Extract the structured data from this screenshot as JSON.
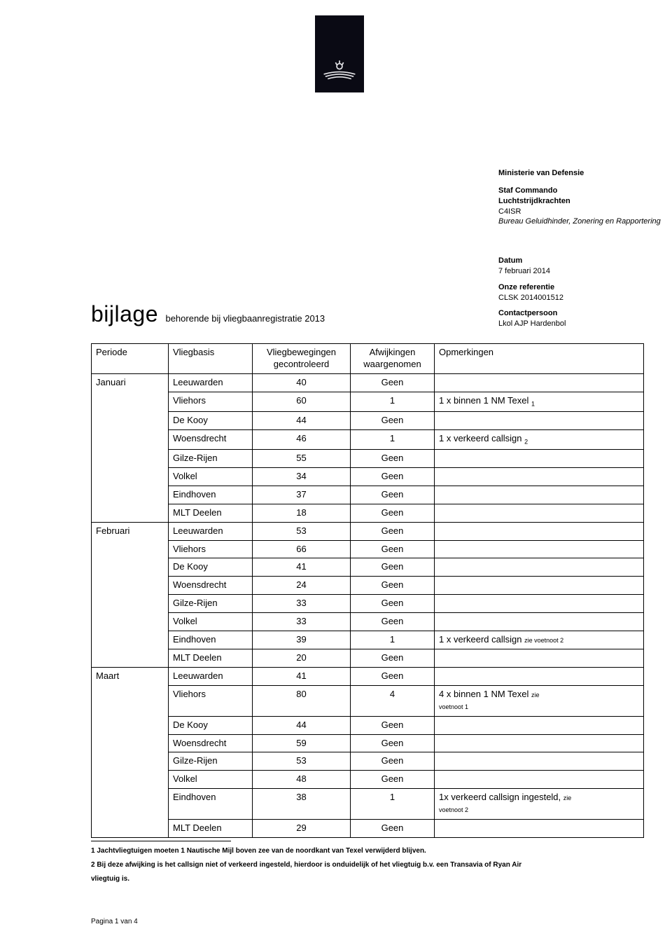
{
  "logo": {
    "background": "#0a0a14",
    "stroke": "#e6e6ea"
  },
  "header": {
    "ministry": "Ministerie van Defensie",
    "dept_bold": "Staf Commando\nLuchtstrijdkrachten",
    "dept_plain": "C4ISR",
    "dept_italic": "Bureau Geluidhinder, Zonering en Rapportering"
  },
  "meta": {
    "datum_label": "Datum",
    "datum_value": "7 februari 2014",
    "ref_label": "Onze referentie",
    "ref_value": "CLSK 2014001512",
    "contact_label": "Contactpersoon",
    "contact_value": "Lkol AJP Hardenbol"
  },
  "title": {
    "main": "bijlage",
    "sub": "behorende bij vliegbaanregistratie 2013"
  },
  "columns": {
    "periode": "Periode",
    "vliegbasis": "Vliegbasis",
    "beweging_l1": "Vliegbewegingen",
    "beweging_l2": "gecontroleerd",
    "afw_l1": "Afwijkingen",
    "afw_l2": "waargenomen",
    "opm": "Opmerkingen"
  },
  "rows": [
    {
      "periode": "Januari",
      "basis": "Leeuwarden",
      "beweg": "40",
      "afw": "Geen",
      "opm": ""
    },
    {
      "periode": "",
      "basis": "Vliehors",
      "beweg": "60",
      "afw": "1",
      "opm": "1 x binnen 1 NM Texel",
      "opm_sub": "1"
    },
    {
      "periode": "",
      "basis": "De Kooy",
      "beweg": "44",
      "afw": "Geen",
      "opm": ""
    },
    {
      "periode": "",
      "basis": "Woensdrecht",
      "beweg": "46",
      "afw": "1",
      "opm": "1 x verkeerd callsign",
      "opm_sub": "2"
    },
    {
      "periode": "",
      "basis": "Gilze-Rijen",
      "beweg": "55",
      "afw": "Geen",
      "opm": ""
    },
    {
      "periode": "",
      "basis": "Volkel",
      "beweg": "34",
      "afw": "Geen",
      "opm": ""
    },
    {
      "periode": "",
      "basis": "Eindhoven",
      "beweg": "37",
      "afw": "Geen",
      "opm": ""
    },
    {
      "periode": "",
      "basis": "MLT Deelen",
      "beweg": "18",
      "afw": "Geen",
      "opm": ""
    },
    {
      "periode": "Februari",
      "basis": "Leeuwarden",
      "beweg": "53",
      "afw": "Geen",
      "opm": ""
    },
    {
      "periode": "",
      "basis": "Vliehors",
      "beweg": "66",
      "afw": "Geen",
      "opm": ""
    },
    {
      "periode": "",
      "basis": "De Kooy",
      "beweg": "41",
      "afw": "Geen",
      "opm": ""
    },
    {
      "periode": "",
      "basis": "Woensdrecht",
      "beweg": "24",
      "afw": "Geen",
      "opm": ""
    },
    {
      "periode": "",
      "basis": "Gilze-Rijen",
      "beweg": "33",
      "afw": "Geen",
      "opm": ""
    },
    {
      "periode": "",
      "basis": "Volkel",
      "beweg": "33",
      "afw": "Geen",
      "opm": ""
    },
    {
      "periode": "",
      "basis": "Eindhoven",
      "beweg": "39",
      "afw": "1",
      "opm": "1 x verkeerd callsign",
      "opm_small": "zie voetnoot 2"
    },
    {
      "periode": "",
      "basis": "MLT Deelen",
      "beweg": "20",
      "afw": "Geen",
      "opm": ""
    },
    {
      "periode": "Maart",
      "basis": "Leeuwarden",
      "beweg": "41",
      "afw": "Geen",
      "opm": ""
    },
    {
      "periode": "",
      "basis": "Vliehors",
      "beweg": "80",
      "afw": "4",
      "opm": "4 x binnen 1 NM Texel",
      "opm_small": "zie",
      "opm_small2": "voetnoot 1",
      "tall": true
    },
    {
      "periode": "",
      "basis": "De Kooy",
      "beweg": "44",
      "afw": "Geen",
      "opm": ""
    },
    {
      "periode": "",
      "basis": "Woensdrecht",
      "beweg": "59",
      "afw": "Geen",
      "opm": ""
    },
    {
      "periode": "",
      "basis": "Gilze-Rijen",
      "beweg": "53",
      "afw": "Geen",
      "opm": ""
    },
    {
      "periode": "",
      "basis": "Volkel",
      "beweg": "48",
      "afw": "Geen",
      "opm": ""
    },
    {
      "periode": "",
      "basis": "Eindhoven",
      "beweg": "38",
      "afw": "1",
      "opm": "1x verkeerd callsign ingesteld,",
      "opm_small": "zie",
      "opm_small2": "voetnoot 2",
      "tall": true
    },
    {
      "periode": "",
      "basis": "MLT Deelen",
      "beweg": "29",
      "afw": "Geen",
      "opm": ""
    }
  ],
  "period_spans": [
    {
      "start": 0,
      "span": 8
    },
    {
      "start": 8,
      "span": 8
    },
    {
      "start": 16,
      "span": 8
    }
  ],
  "footnotes": {
    "f1": "1 Jachtvliegtuigen moeten 1 Nautische Mijl boven zee van de noordkant van Texel verwijderd blijven.",
    "f2": "2 Bij deze afwijking is het callsign niet of verkeerd ingesteld, hierdoor is onduidelijk of het vliegtuig b.v. een Transavia of Ryan Air",
    "f2b": "vliegtuig is."
  },
  "page": "Pagina 1 van 4",
  "style": {
    "body_width": 960,
    "body_height": 1336,
    "font_family": "Arial",
    "text_color": "#000000",
    "border_color": "#000000",
    "background": "#ffffff"
  }
}
